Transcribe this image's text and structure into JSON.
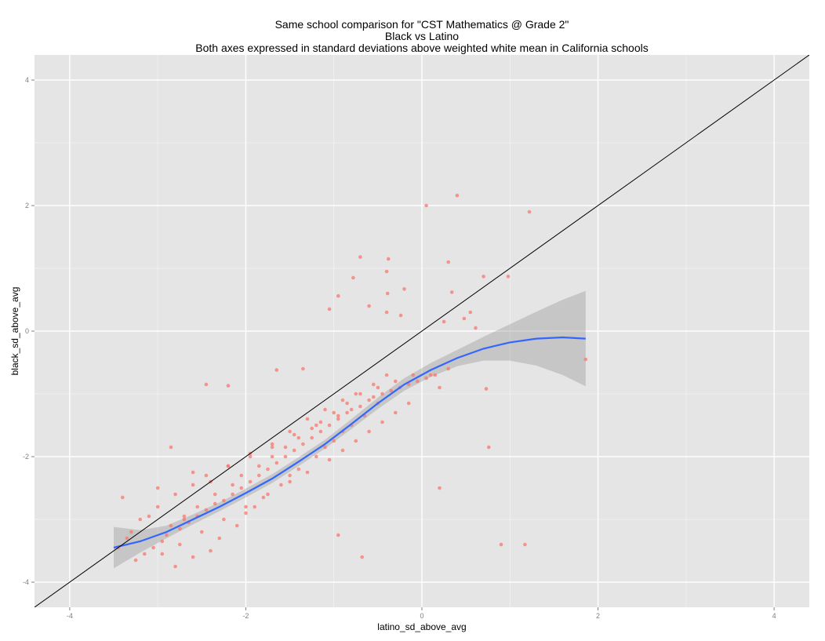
{
  "colors": {
    "panel_background": "#e5e5e5",
    "grid_major": "#ffffff",
    "grid_minor": "#f2f2f2",
    "points": "#f8766d",
    "smooth_line": "#3366ff",
    "confidence_band": "#999999",
    "reference_line": "#000000",
    "tick_label": "#7f7f7f"
  },
  "chart_data": {
    "type": "scatter",
    "title": "Same school comparison for \"CST Mathematics @ Grade 2\"",
    "title_lines": [
      "Same school comparison for \"CST Mathematics @ Grade 2\"",
      "Black vs Latino",
      "Both axes expressed in standard deviations above weighted white mean in California schools"
    ],
    "xlabel": "latino_sd_above_avg",
    "ylabel": "black_sd_above_avg",
    "xlim": [
      -4.4,
      4.4
    ],
    "ylim": [
      -4.4,
      4.4
    ],
    "x_ticks": [
      -4,
      -2,
      0,
      2,
      4
    ],
    "x_tick_labels": [
      "-4",
      "-2",
      "0",
      "2",
      "4"
    ],
    "y_ticks": [
      -4,
      -2,
      0,
      2,
      4
    ],
    "y_tick_labels": [
      "-4",
      "-2",
      "0",
      "2",
      "4"
    ],
    "grid": true,
    "legend": "none",
    "reference_line": {
      "slope": 1,
      "intercept": 0
    },
    "series": [
      {
        "type": "scatter",
        "x": [
          0.4,
          0.05,
          1.22,
          -0.7,
          -0.38,
          -0.4,
          0.7,
          0.98,
          0.3,
          -0.78,
          -0.95,
          -0.2,
          -0.6,
          -0.39,
          -0.4,
          -1.05,
          0.34,
          0.55,
          0.25,
          0.48,
          0.61,
          -0.24,
          0.73,
          1.86,
          0.76,
          0.9,
          0.2,
          1.17,
          -0.68,
          -0.95,
          -1.65,
          -2.45,
          -2.2,
          -1.35,
          -3.4,
          -3.1,
          -2.85,
          -3.0,
          -3.3,
          -2.7,
          -2.4,
          -2.6,
          -2.2,
          -1.95,
          -1.7,
          -1.5,
          -1.3,
          -1.1,
          -0.9,
          -0.75,
          -0.5,
          -0.3,
          -0.1,
          0.1,
          0.3,
          -3.25,
          -3.15,
          -3.05,
          -2.95,
          -2.9,
          -2.75,
          -2.65,
          -2.55,
          -2.45,
          -2.35,
          -2.25,
          -2.15,
          -2.05,
          -1.95,
          -1.85,
          -1.75,
          -1.65,
          -1.55,
          -1.45,
          -1.35,
          -1.25,
          -1.15,
          -1.05,
          -0.95,
          -0.85,
          -0.8,
          -0.7,
          -0.6,
          -0.55,
          -0.45,
          -0.35,
          -0.25,
          -0.15,
          -0.05,
          0.05,
          0.15,
          -2.8,
          -2.6,
          -2.4,
          -2.3,
          -2.1,
          -2.0,
          -1.9,
          -1.8,
          -1.6,
          -1.5,
          -1.4,
          -1.2,
          -1.1,
          -1.0,
          -0.9,
          -0.8,
          -0.65,
          -3.45,
          -3.35,
          -2.85,
          -2.7,
          -2.55,
          -2.35,
          -2.15,
          -2.05,
          -1.85,
          -1.7,
          -1.55,
          -1.4,
          -1.25,
          -1.15,
          -1.0,
          -0.85,
          -0.7,
          -0.55,
          -0.4,
          -2.95,
          -2.75,
          -2.5,
          -2.25,
          -2.0,
          -1.75,
          -1.5,
          -1.3,
          -1.05,
          -0.9,
          -0.75,
          -0.6,
          -0.45,
          -0.3,
          -0.15,
          -3.2,
          -3.0,
          -2.8,
          -2.6,
          -2.45,
          -2.2,
          -1.95,
          -1.7,
          -1.45,
          -1.2,
          -0.95,
          -0.5,
          0.2
        ],
        "y": [
          2.16,
          2.0,
          1.9,
          1.18,
          1.15,
          0.95,
          0.87,
          0.87,
          1.1,
          0.85,
          0.56,
          0.67,
          0.4,
          0.6,
          0.3,
          0.35,
          0.62,
          0.3,
          0.15,
          0.2,
          0.05,
          0.25,
          -0.92,
          -0.45,
          -1.85,
          -3.4,
          -2.5,
          -3.4,
          -3.6,
          -3.25,
          -0.62,
          -0.85,
          -0.87,
          -0.6,
          -2.65,
          -2.95,
          -1.85,
          -2.5,
          -3.2,
          -3.0,
          -2.4,
          -2.25,
          -2.15,
          -2.0,
          -1.85,
          -1.6,
          -1.4,
          -1.25,
          -1.1,
          -1.0,
          -0.9,
          -0.8,
          -0.7,
          -0.7,
          -0.6,
          -3.65,
          -3.55,
          -3.45,
          -3.35,
          -3.25,
          -3.15,
          -3.05,
          -2.95,
          -2.85,
          -2.75,
          -2.7,
          -2.6,
          -2.5,
          -2.4,
          -2.3,
          -2.2,
          -2.1,
          -2.0,
          -1.9,
          -1.8,
          -1.7,
          -1.6,
          -1.5,
          -1.4,
          -1.3,
          -1.25,
          -1.2,
          -1.1,
          -1.05,
          -1.0,
          -0.95,
          -0.9,
          -0.85,
          -0.8,
          -0.75,
          -0.7,
          -3.75,
          -3.6,
          -3.5,
          -3.3,
          -3.1,
          -2.9,
          -2.8,
          -2.65,
          -2.45,
          -2.3,
          -2.2,
          -2.0,
          -1.85,
          -1.75,
          -1.6,
          -1.5,
          -1.35,
          -3.45,
          -3.3,
          -3.1,
          -2.95,
          -2.8,
          -2.6,
          -2.45,
          -2.3,
          -2.15,
          -2.0,
          -1.85,
          -1.7,
          -1.55,
          -1.45,
          -1.3,
          -1.15,
          -1.0,
          -0.85,
          -0.7,
          -3.55,
          -3.4,
          -3.2,
          -3.0,
          -2.8,
          -2.6,
          -2.4,
          -2.25,
          -2.05,
          -1.9,
          -1.75,
          -1.6,
          -1.45,
          -1.3,
          -1.15,
          -3.0,
          -2.8,
          -2.6,
          -2.45,
          -2.3,
          -2.15,
          -1.95,
          -1.8,
          -1.65,
          -1.5,
          -1.35,
          -1.15,
          -0.9
        ]
      },
      {
        "type": "line",
        "name": "",
        "x": [
          -3.5,
          -3.2,
          -2.9,
          -2.6,
          -2.3,
          -2.0,
          -1.7,
          -1.4,
          -1.1,
          -0.8,
          -0.5,
          -0.2,
          0.1,
          0.4,
          0.7,
          1.0,
          1.3,
          1.6,
          1.86
        ],
        "y": [
          -3.45,
          -3.35,
          -3.2,
          -3.0,
          -2.8,
          -2.58,
          -2.35,
          -2.08,
          -1.8,
          -1.48,
          -1.15,
          -0.85,
          -0.62,
          -0.43,
          -0.28,
          -0.18,
          -0.12,
          -0.1,
          -0.12
        ],
        "lower": [
          -3.78,
          -3.53,
          -3.3,
          -3.08,
          -2.87,
          -2.65,
          -2.42,
          -2.15,
          -1.87,
          -1.56,
          -1.24,
          -0.95,
          -0.73,
          -0.56,
          -0.47,
          -0.47,
          -0.55,
          -0.7,
          -0.88
        ],
        "upper": [
          -3.12,
          -3.17,
          -3.1,
          -2.92,
          -2.73,
          -2.51,
          -2.28,
          -2.01,
          -1.73,
          -1.4,
          -1.06,
          -0.75,
          -0.51,
          -0.3,
          -0.09,
          0.11,
          0.31,
          0.5,
          0.64
        ]
      }
    ]
  }
}
